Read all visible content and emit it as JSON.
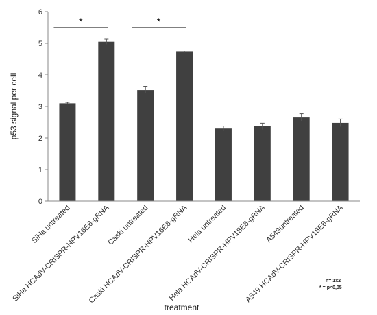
{
  "chart_data": {
    "type": "bar",
    "title": "",
    "xlabel": "treatment",
    "ylabel": "p53 signal per cell",
    "ylim": [
      0,
      6
    ],
    "yticks": [
      0,
      1,
      2,
      3,
      4,
      5,
      6
    ],
    "grid": false,
    "bar_color": "#404040",
    "categories": [
      "SiHa untreated",
      "SiHa HCAdV-CRISPR-HPV16E6-gRNA",
      "Caski untreated",
      "Caski HCAdV-CRISPR-HPV16E6-gRNA",
      "Hela untreated",
      "Hela HCAdV-CRISPR-HPV18E6-gRNA",
      "A549untreated",
      "A549 HCAdV-CRISPR-HPV18E6-gRNA"
    ],
    "values": [
      3.1,
      5.05,
      3.52,
      4.73,
      2.3,
      2.37,
      2.65,
      2.48
    ],
    "errors": [
      0.03,
      0.08,
      0.1,
      0.02,
      0.08,
      0.1,
      0.12,
      0.12
    ],
    "significance": [
      {
        "from": 0,
        "to": 1,
        "y": 5.5,
        "label": "*"
      },
      {
        "from": 2,
        "to": 3,
        "y": 5.5,
        "label": "*"
      }
    ],
    "notes": [
      "n= 1x2",
      "* =  p<0,05"
    ]
  }
}
